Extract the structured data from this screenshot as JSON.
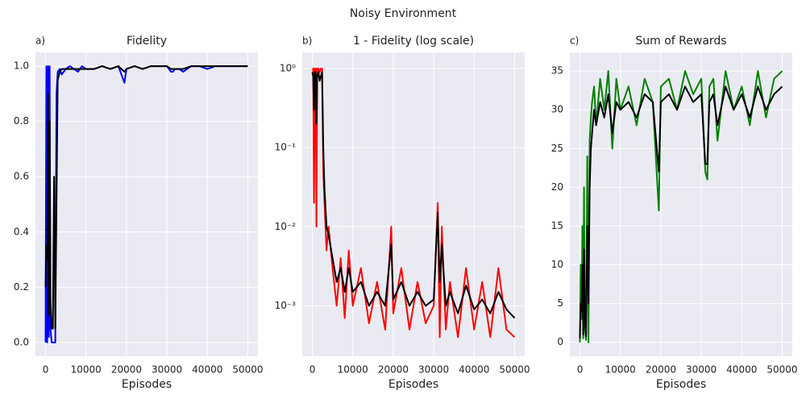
{
  "title": "Noisy Environment",
  "chart_data": [
    {
      "type": "line",
      "panel": "a)",
      "title": "Fidelity",
      "xlabel": "Episodes",
      "grid": true,
      "log_y": false,
      "x": [
        0,
        200,
        400,
        600,
        800,
        1000,
        1200,
        1500,
        1800,
        2100,
        2400,
        2700,
        3000,
        3500,
        4000,
        5000,
        6000,
        7000,
        8000,
        9000,
        10000,
        12000,
        14000,
        16000,
        18000,
        19500,
        20000,
        22000,
        24000,
        26000,
        28000,
        30000,
        31000,
        31500,
        32000,
        33000,
        34000,
        36000,
        38000,
        40000,
        42000,
        44000,
        46000,
        48000,
        50000
      ],
      "xlim": [
        -2500,
        52500
      ],
      "xticks": [
        0,
        10000,
        20000,
        30000,
        40000,
        50000
      ],
      "ylim": [
        -0.05,
        1.05
      ],
      "yticks": [
        {
          "value": 0,
          "label": "0.0"
        },
        0.2,
        0.4,
        0.6,
        0.8,
        {
          "value": 1,
          "label": "1.0"
        }
      ],
      "series": [
        {
          "color": "#0000ff",
          "values": [
            0,
            1,
            0,
            1,
            0.02,
            1,
            0.05,
            0,
            0,
            0,
            0,
            0.9,
            0.98,
            0.99,
            0.97,
            0.99,
            1,
            0.99,
            0.98,
            1,
            0.99,
            0.99,
            1,
            0.99,
            1,
            0.94,
            0.99,
            1,
            0.99,
            1,
            1,
            1,
            0.98,
            0.98,
            0.99,
            0.99,
            0.98,
            1,
            1,
            0.99,
            1,
            1,
            1,
            1,
            1
          ]
        },
        {
          "color": "#000000",
          "values": [
            0.2,
            0.35,
            0.3,
            0.9,
            0.1,
            0.8,
            0.15,
            0.05,
            0.05,
            0.6,
            0.05,
            0.5,
            0.95,
            0.98,
            0.99,
            0.99,
            0.99,
            0.99,
            0.99,
            0.99,
            0.99,
            0.99,
            1,
            0.99,
            1,
            0.98,
            0.99,
            1,
            0.99,
            1,
            1,
            1,
            0.99,
            0.99,
            0.99,
            0.99,
            0.99,
            1,
            1,
            1,
            1,
            1,
            1,
            1,
            1
          ]
        }
      ]
    },
    {
      "type": "line",
      "panel": "b)",
      "title": "1 - Fidelity (log scale)",
      "xlabel": "Episodes",
      "grid": true,
      "log_y": true,
      "x": [
        0,
        200,
        400,
        600,
        800,
        1000,
        1200,
        1500,
        1800,
        2100,
        2400,
        2700,
        3000,
        3500,
        4000,
        5000,
        6000,
        7000,
        8000,
        9000,
        10000,
        12000,
        14000,
        16000,
        18000,
        19500,
        20000,
        22000,
        24000,
        26000,
        28000,
        30000,
        31000,
        31500,
        32000,
        33000,
        34000,
        36000,
        38000,
        40000,
        42000,
        44000,
        46000,
        48000,
        50000
      ],
      "xlim": [
        -2500,
        52500
      ],
      "xticks": [
        0,
        10000,
        20000,
        30000,
        40000,
        50000
      ],
      "ylim": [
        0.00023,
        1.6
      ],
      "yticks": [
        {
          "value": 0.001,
          "label": "10⁻³"
        },
        {
          "value": 0.01,
          "label": "10⁻²"
        },
        {
          "value": 0.1,
          "label": "10⁻¹"
        },
        {
          "value": 1,
          "label": "10⁰"
        }
      ],
      "series": [
        {
          "color": "#ff0000",
          "values": [
            1,
            1,
            0.02,
            1,
            1,
            0.01,
            1,
            1,
            0.9,
            1,
            1,
            0.05,
            0.02,
            0.005,
            0.01,
            0.003,
            0.001,
            0.004,
            0.0007,
            0.005,
            0.001,
            0.003,
            0.0006,
            0.002,
            0.0005,
            0.01,
            0.0008,
            0.003,
            0.0005,
            0.002,
            0.0006,
            0.001,
            0.02,
            0.0004,
            0.01,
            0.0005,
            0.002,
            0.0004,
            0.003,
            0.0005,
            0.002,
            0.0004,
            0.003,
            0.0005,
            0.0004
          ]
        },
        {
          "color": "#000000",
          "values": [
            0.9,
            0.8,
            0.3,
            0.9,
            0.9,
            0.2,
            0.8,
            0.9,
            0.7,
            0.8,
            0.9,
            0.1,
            0.03,
            0.01,
            0.008,
            0.004,
            0.002,
            0.003,
            0.0015,
            0.003,
            0.0015,
            0.002,
            0.001,
            0.0015,
            0.001,
            0.006,
            0.0012,
            0.002,
            0.001,
            0.0015,
            0.001,
            0.0012,
            0.015,
            0.002,
            0.006,
            0.001,
            0.0015,
            0.0008,
            0.0018,
            0.0009,
            0.0012,
            0.0008,
            0.0015,
            0.0009,
            0.0007
          ]
        }
      ]
    },
    {
      "type": "line",
      "panel": "c)",
      "title": "Sum of Rewards",
      "xlabel": "Episodes",
      "grid": true,
      "log_y": false,
      "x": [
        0,
        200,
        400,
        600,
        800,
        1000,
        1200,
        1500,
        1800,
        2100,
        2400,
        2700,
        3000,
        3500,
        4000,
        5000,
        6000,
        7000,
        8000,
        9000,
        10000,
        12000,
        14000,
        16000,
        18000,
        19500,
        20000,
        22000,
        24000,
        26000,
        28000,
        30000,
        31000,
        31500,
        32000,
        33000,
        34000,
        36000,
        38000,
        40000,
        42000,
        44000,
        46000,
        48000,
        50000
      ],
      "xlim": [
        -2500,
        52500
      ],
      "xticks": [
        0,
        10000,
        20000,
        30000,
        40000,
        50000
      ],
      "ylim": [
        -1.8,
        37.4
      ],
      "yticks": [
        0,
        5,
        10,
        15,
        20,
        25,
        30,
        35
      ],
      "series": [
        {
          "color": "#008000",
          "values": [
            0,
            10,
            3,
            15,
            0.5,
            20,
            2,
            0.3,
            24,
            0,
            26,
            29,
            31,
            33,
            28,
            34,
            30,
            35,
            25,
            34,
            30,
            33,
            28,
            34,
            31,
            17,
            33,
            34,
            30,
            35,
            32,
            34,
            22,
            21,
            33,
            34,
            26,
            35,
            30,
            33,
            28,
            35,
            29,
            34,
            35
          ]
        },
        {
          "color": "#000000",
          "values": [
            0.5,
            5,
            4,
            10,
            1,
            12,
            3,
            0.8,
            15,
            5,
            20,
            25,
            27,
            30,
            28,
            31,
            29,
            32,
            27,
            31,
            30,
            31,
            29,
            32,
            31,
            22,
            31,
            32,
            30,
            33,
            31,
            32,
            23,
            23,
            31,
            32,
            28,
            33,
            30,
            32,
            29,
            33,
            30,
            32,
            33
          ]
        }
      ]
    }
  ]
}
